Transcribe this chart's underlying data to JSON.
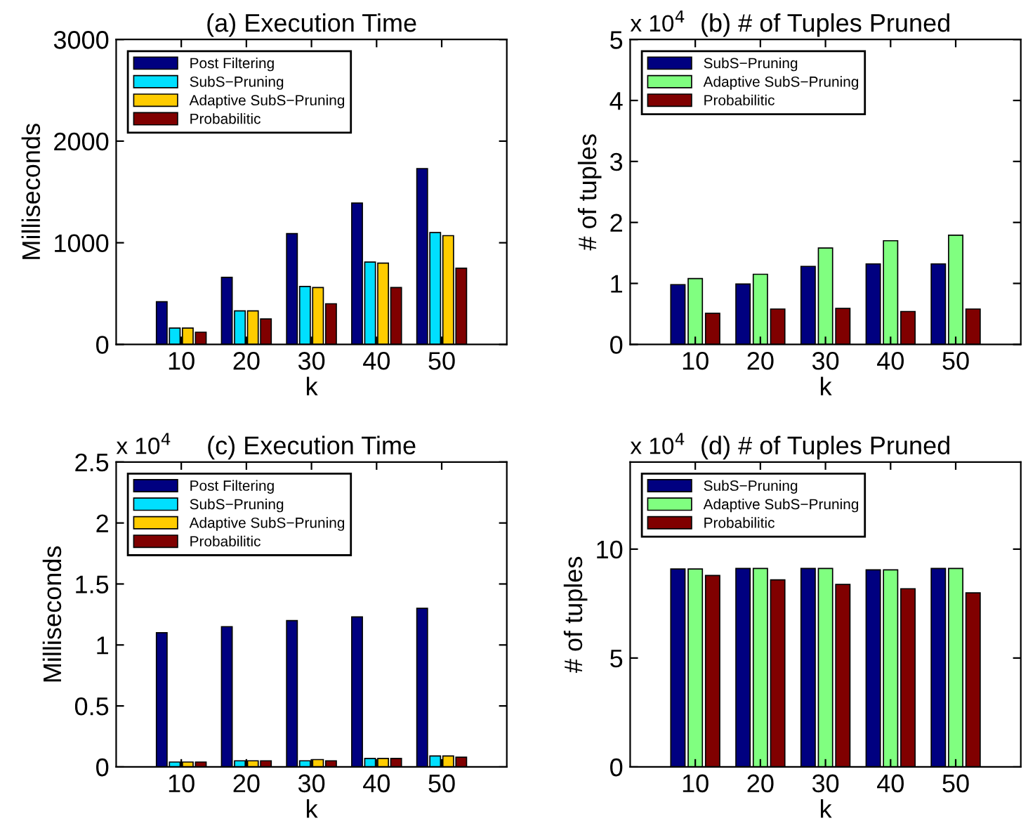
{
  "chart_data": [
    {
      "type": "bar",
      "title": "(a) Execution Time",
      "xlabel": "k",
      "ylabel": "Milliseconds",
      "categories": [
        "10",
        "20",
        "30",
        "40",
        "50"
      ],
      "ylim": [
        0,
        3000
      ],
      "yticks": [
        0,
        1000,
        2000,
        3000
      ],
      "legend": "top left",
      "grid": false,
      "series": [
        {
          "name": "Post Filtering",
          "color": "#000080",
          "values": [
            420,
            660,
            1090,
            1390,
            1730
          ]
        },
        {
          "name": "SubS−Pruning",
          "color": "#00dfff",
          "values": [
            160,
            330,
            570,
            810,
            1100
          ]
        },
        {
          "name": "Adaptive SubS−Pruning",
          "color": "#ffcc00",
          "values": [
            160,
            330,
            560,
            800,
            1070
          ]
        },
        {
          "name": "Probabilitic",
          "color": "#800000",
          "values": [
            120,
            250,
            400,
            560,
            750
          ]
        }
      ]
    },
    {
      "type": "bar",
      "title": "(b) # of Tuples Pruned",
      "xlabel": "k",
      "ylabel": "# of tuples",
      "annotations": [
        "x 10$^{4}$"
      ],
      "categories": [
        "10",
        "20",
        "30",
        "40",
        "50"
      ],
      "ylim": [
        0,
        5
      ],
      "yticks": [
        0,
        1,
        2,
        3,
        4,
        5
      ],
      "legend": "top left",
      "grid": false,
      "series": [
        {
          "name": "SubS−Pruning",
          "color": "#000080",
          "values": [
            0.98,
            0.99,
            1.28,
            1.32,
            1.32
          ]
        },
        {
          "name": "Adaptive SubS−Pruning",
          "color": "#80ff80",
          "values": [
            1.08,
            1.15,
            1.58,
            1.7,
            1.79
          ]
        },
        {
          "name": "Probabilitic",
          "color": "#800000",
          "values": [
            0.51,
            0.58,
            0.59,
            0.54,
            0.58
          ]
        }
      ]
    },
    {
      "type": "bar",
      "title": "(c) Execution Time",
      "xlabel": "k",
      "ylabel": "Milliseconds",
      "annotations": [
        "x 10$^{4}$"
      ],
      "categories": [
        "10",
        "20",
        "30",
        "40",
        "50"
      ],
      "ylim": [
        0,
        2.5
      ],
      "yticks": [
        0,
        0.5,
        1,
        1.5,
        2,
        2.5
      ],
      "legend": "top left",
      "grid": false,
      "series": [
        {
          "name": "Post Filtering",
          "color": "#000080",
          "values": [
            1.1,
            1.15,
            1.2,
            1.23,
            1.3
          ]
        },
        {
          "name": "SubS−Pruning",
          "color": "#00dfff",
          "values": [
            0.04,
            0.05,
            0.05,
            0.07,
            0.09
          ]
        },
        {
          "name": "Adaptive SubS−Pruning",
          "color": "#ffcc00",
          "values": [
            0.04,
            0.05,
            0.06,
            0.07,
            0.09
          ]
        },
        {
          "name": "Probabilitic",
          "color": "#800000",
          "values": [
            0.04,
            0.05,
            0.05,
            0.07,
            0.08
          ]
        }
      ]
    },
    {
      "type": "bar",
      "title": "(d) # of Tuples Pruned",
      "xlabel": "k",
      "ylabel": "# of tuples",
      "annotations": [
        "x 10$^{4}$"
      ],
      "categories": [
        "10",
        "20",
        "30",
        "40",
        "50"
      ],
      "ylim": [
        0,
        14
      ],
      "yticks": [
        0,
        5,
        10
      ],
      "legend": "top left",
      "grid": false,
      "series": [
        {
          "name": "SubS−Pruning",
          "color": "#000080",
          "values": [
            9.09,
            9.11,
            9.11,
            9.05,
            9.11
          ]
        },
        {
          "name": "Adaptive SubS−Pruning",
          "color": "#80ff80",
          "values": [
            9.09,
            9.11,
            9.11,
            9.05,
            9.11
          ]
        },
        {
          "name": "Probabilitic",
          "color": "#800000",
          "values": [
            8.79,
            8.59,
            8.38,
            8.18,
            7.99
          ]
        }
      ]
    }
  ]
}
